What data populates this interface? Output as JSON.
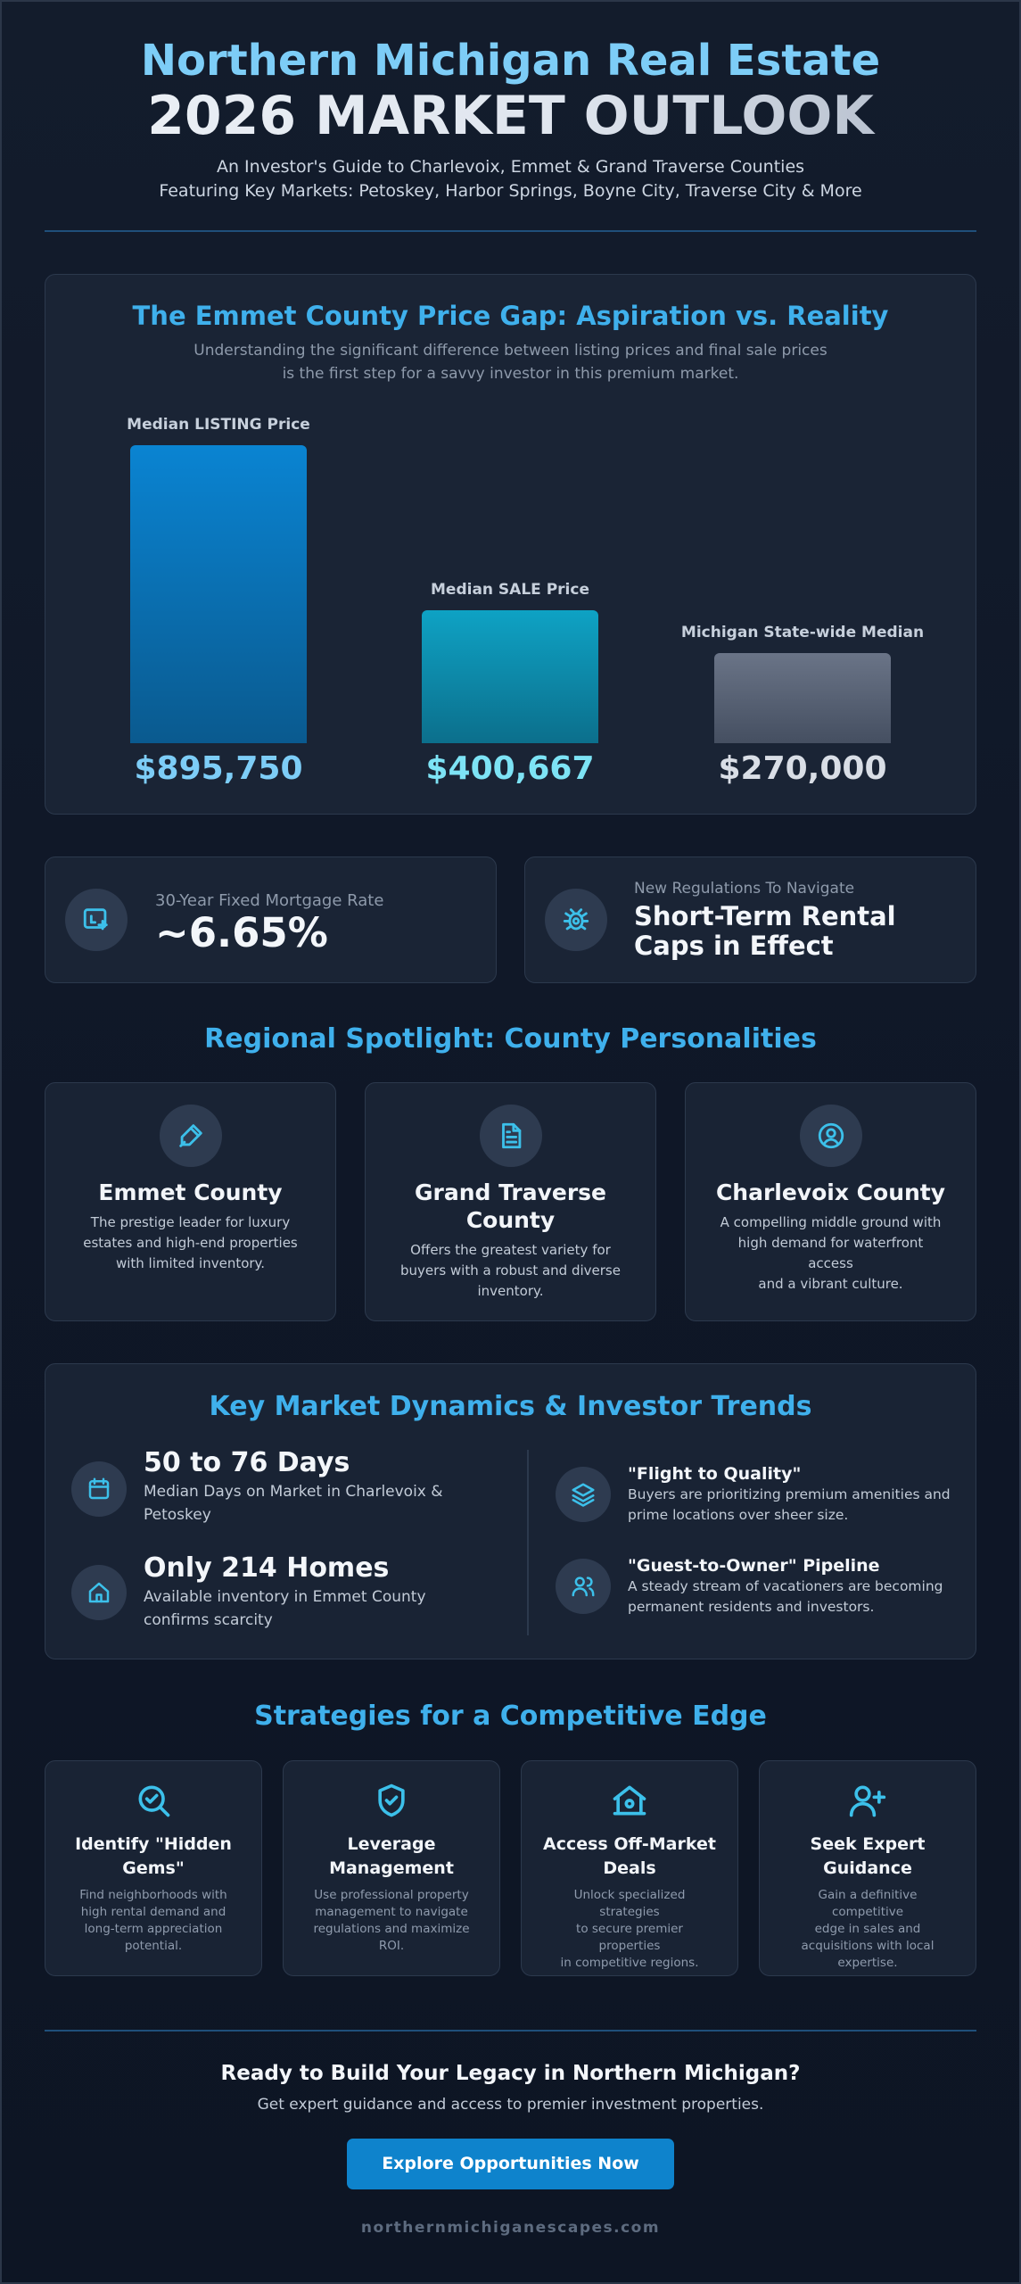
{
  "header": {
    "title_line1": "Northern Michigan Real Estate",
    "title_line2": "2026 MARKET OUTLOOK",
    "subtitle1": "An Investor's Guide to Charlevoix, Emmet & Grand Traverse Counties",
    "subtitle2": "Featuring Key Markets: Petoskey, Harbor Springs, Boyne City, Traverse City & More"
  },
  "price_gap": {
    "title": "The Emmet County Price Gap: Aspiration vs. Reality",
    "desc1": "Understanding the significant difference between listing prices and final sale prices",
    "desc2": "is the first step for a savvy investor in this premium market."
  },
  "chart_data": {
    "type": "bar",
    "title": "The Emmet County Price Gap: Aspiration vs. Reality",
    "categories": [
      "Median LISTING Price",
      "Median SALE Price",
      "Michigan State-wide Median"
    ],
    "values": [
      895750,
      400667,
      270000
    ],
    "value_labels": [
      "$895,750",
      "$400,667",
      "$270,000"
    ],
    "ylim": [
      0,
      895750
    ],
    "colors": [
      "#0a7ec9",
      "#0f9ec0",
      "#5b6577"
    ],
    "value_colors": [
      "#7dcdf7",
      "#7de3f5",
      "#d9dee6"
    ],
    "grid": false,
    "legend": "none"
  },
  "stats": {
    "mortgage_label": "30-Year Fixed Mortgage Rate",
    "mortgage_value": "~6.65%",
    "regulation_label": "New Regulations To Navigate",
    "regulation_line1": "Short-Term Rental",
    "regulation_line2": "Caps in Effect"
  },
  "spotlight": {
    "title": "Regional Spotlight: County Personalities",
    "counties": [
      {
        "title1": "Emmet County",
        "title2": "",
        "icon": "pencil-ruler-icon",
        "desc": [
          "The prestige leader for luxury",
          "estates and high-end properties",
          "with limited inventory."
        ]
      },
      {
        "title1": "Grand Traverse",
        "title2": "County",
        "icon": "document-icon",
        "desc": [
          "Offers the greatest variety for",
          "buyers with a robust and diverse",
          "inventory."
        ]
      },
      {
        "title1": "Charlevoix County",
        "title2": "",
        "icon": "user-circle-icon",
        "desc": [
          "A compelling middle ground with",
          "high demand for waterfront access",
          "and a vibrant culture."
        ]
      }
    ]
  },
  "dynamics": {
    "title": "Key Market Dynamics & Investor Trends",
    "left": [
      {
        "big": "50 to 76 Days",
        "line1": "Median Days on Market in Charlevoix &",
        "line2": "Petoskey",
        "icon": "calendar-icon"
      },
      {
        "big": "Only 214 Homes",
        "line1": "Available inventory in Emmet County",
        "line2": "confirms scarcity",
        "icon": "home-icon"
      }
    ],
    "right": [
      {
        "head": "\"Flight to Quality\"",
        "line1": "Buyers are prioritizing premium amenities and",
        "line2": "prime locations over sheer size.",
        "icon": "layers-icon"
      },
      {
        "head": "\"Guest-to-Owner\" Pipeline",
        "line1": "A steady stream of vacationers are becoming",
        "line2": "permanent residents and investors.",
        "icon": "users-icon"
      }
    ]
  },
  "strategies": {
    "title": "Strategies for a Competitive Edge",
    "items": [
      {
        "title1": "Identify \"Hidden",
        "title2": "Gems\"",
        "icon": "search-check-icon",
        "desc": [
          "Find neighborhoods with",
          "high rental demand and",
          "long-term appreciation",
          "potential."
        ]
      },
      {
        "title1": "Leverage",
        "title2": "Management",
        "icon": "shield-check-icon",
        "desc": [
          "Use professional property",
          "management to navigate",
          "regulations and maximize",
          "ROI."
        ]
      },
      {
        "title1": "Access Off-Market",
        "title2": "Deals",
        "icon": "house-lock-icon",
        "desc": [
          "Unlock specialized strategies",
          "to secure premier properties",
          "in competitive regions."
        ]
      },
      {
        "title1": "Seek Expert",
        "title2": "Guidance",
        "icon": "user-plus-icon",
        "desc": [
          "Gain a definitive competitive",
          "edge in sales and",
          "acquisitions with local",
          "expertise."
        ]
      }
    ]
  },
  "cta": {
    "title": "Ready to Build Your Legacy in Northern Michigan?",
    "subtitle": "Get expert guidance and access to premier investment properties.",
    "button": "Explore Opportunities Now"
  },
  "footer": {
    "url": "northernmichiganescapes.com"
  },
  "colors": {
    "accent": "#3fb0ec",
    "icon": "#3cc0ea",
    "button": "#0e83cc"
  }
}
